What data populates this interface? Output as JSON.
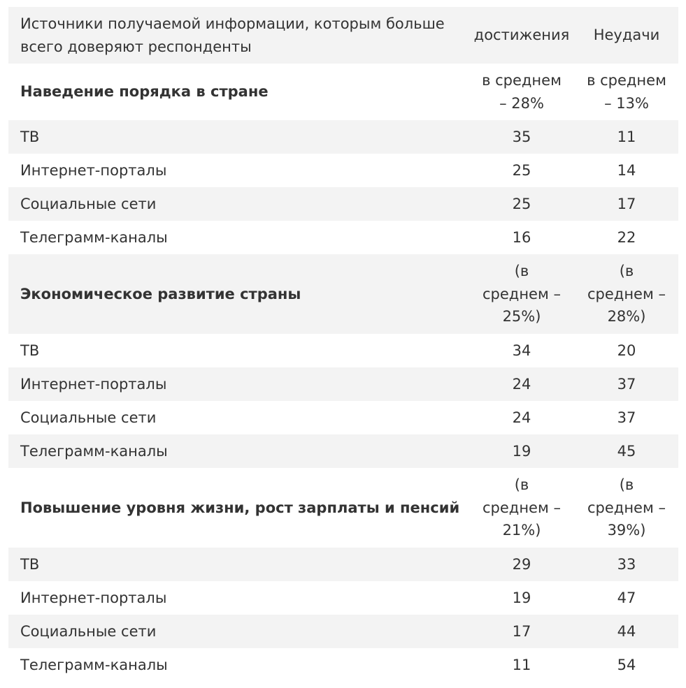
{
  "header": {
    "sources": "Источники получаемой информации, которым больше всего доверяют респонденты",
    "achievements": "достижения",
    "failures": "Неудачи"
  },
  "sections": [
    {
      "title": "Наведение порядка в стране",
      "avg_achievements": "в среднем – 28%",
      "avg_failures": "в среднем – 13%",
      "rows": [
        {
          "source": "ТВ",
          "achievements": "35",
          "failures": "11"
        },
        {
          "source": "Интернет-порталы",
          "achievements": "25",
          "failures": "14"
        },
        {
          "source": "Социальные сети",
          "achievements": "25",
          "failures": "17"
        },
        {
          "source": "Телеграмм-каналы",
          "achievements": "16",
          "failures": "22"
        }
      ]
    },
    {
      "title": "Экономическое развитие страны",
      "avg_achievements": "(в среднем – 25%)",
      "avg_failures": "(в среднем – 28%)",
      "rows": [
        {
          "source": "ТВ",
          "achievements": "34",
          "failures": "20"
        },
        {
          "source": "Интернет-порталы",
          "achievements": "24",
          "failures": "37"
        },
        {
          "source": "Социальные сети",
          "achievements": "24",
          "failures": "37"
        },
        {
          "source": "Телеграмм-каналы",
          "achievements": "19",
          "failures": "45"
        }
      ]
    },
    {
      "title": "Повышение уровня жизни, рост зарплаты и пенсий",
      "avg_achievements": "(в среднем – 21%)",
      "avg_failures": "(в среднем – 39%)",
      "rows": [
        {
          "source": "ТВ",
          "achievements": "29",
          "failures": "33"
        },
        {
          "source": "Интернет-порталы",
          "achievements": "19",
          "failures": "47"
        },
        {
          "source": "Социальные сети",
          "achievements": "17",
          "failures": "44"
        },
        {
          "source": "Телеграмм-каналы",
          "achievements": "11",
          "failures": "54"
        }
      ]
    }
  ],
  "colors": {
    "shade": "#f3f3f3",
    "text": "#333333"
  }
}
